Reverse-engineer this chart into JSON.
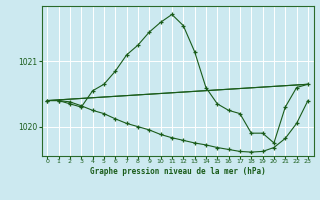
{
  "title": "Graphe pression niveau de la mer (hPa)",
  "bg_color": "#cce9f0",
  "grid_color": "#ffffff",
  "line_color": "#1a5c1a",
  "xlim": [
    -0.5,
    23.5
  ],
  "ylim": [
    1019.55,
    1021.85
  ],
  "yticks": [
    1020,
    1021
  ],
  "xticks": [
    0,
    1,
    2,
    3,
    4,
    5,
    6,
    7,
    8,
    9,
    10,
    11,
    12,
    13,
    14,
    15,
    16,
    17,
    18,
    19,
    20,
    21,
    22,
    23
  ],
  "series": [
    {
      "x": [
        0,
        1,
        2,
        3,
        4,
        5,
        6,
        7,
        8,
        9,
        10,
        11,
        12,
        13,
        14,
        15,
        16,
        17,
        18,
        19,
        20,
        21,
        22,
        23
      ],
      "y": [
        1020.4,
        1020.4,
        1020.35,
        1020.3,
        1020.55,
        1020.65,
        1020.85,
        1021.1,
        1021.25,
        1021.45,
        1021.6,
        1021.72,
        1021.55,
        1021.15,
        1020.6,
        1020.35,
        1020.25,
        1020.2,
        1019.9,
        1019.9,
        1019.75,
        1020.3,
        1020.6,
        1020.65
      ]
    },
    {
      "x": [
        0,
        1,
        2,
        3,
        4,
        5,
        6,
        7,
        8,
        9,
        10,
        11,
        12,
        13,
        14,
        15,
        16,
        17,
        18,
        19,
        20,
        21,
        22,
        23
      ],
      "y": [
        1020.4,
        1020.4,
        1020.38,
        1020.32,
        1020.25,
        1020.2,
        1020.12,
        1020.05,
        1020.0,
        1019.95,
        1019.88,
        1019.83,
        1019.79,
        1019.75,
        1019.72,
        1019.68,
        1019.65,
        1019.62,
        1019.61,
        1019.62,
        1019.68,
        1019.82,
        1020.05,
        1020.4
      ]
    },
    {
      "x": [
        0,
        23
      ],
      "y": [
        1020.4,
        1020.65
      ]
    },
    {
      "x": [
        0,
        23
      ],
      "y": [
        1020.4,
        1020.65
      ]
    }
  ]
}
